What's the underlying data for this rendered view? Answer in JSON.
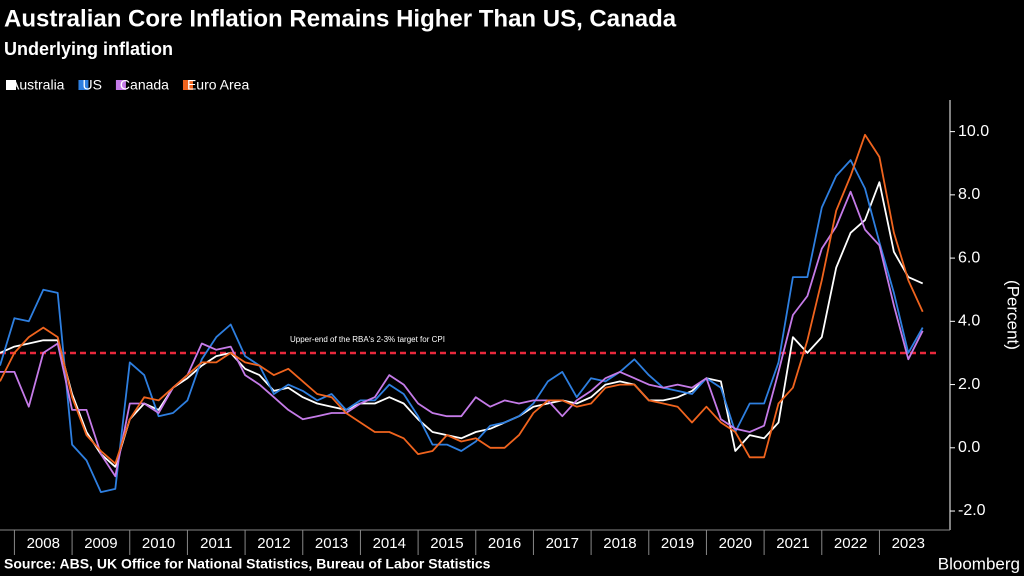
{
  "chart_data": {
    "type": "line",
    "title": "Australian Core Inflation Remains Higher Than US, Canada",
    "subtitle": "Underlying inflation",
    "y_label": "(Percent)",
    "source": "Source: ABS, UK Office for National Statistics, Bureau of Labor Statistics",
    "brand": "Bloomberg",
    "x": [
      2007.75,
      2008,
      2008.25,
      2008.5,
      2008.75,
      2009,
      2009.25,
      2009.5,
      2009.75,
      2010,
      2010.25,
      2010.5,
      2010.75,
      2011,
      2011.25,
      2011.5,
      2011.75,
      2012,
      2012.25,
      2012.5,
      2012.75,
      2013,
      2013.25,
      2013.5,
      2013.75,
      2014,
      2014.25,
      2014.5,
      2014.75,
      2015,
      2015.25,
      2015.5,
      2015.75,
      2016,
      2016.25,
      2016.5,
      2016.75,
      2017,
      2017.25,
      2017.5,
      2017.75,
      2018,
      2018.25,
      2018.5,
      2018.75,
      2019,
      2019.25,
      2019.5,
      2019.75,
      2020,
      2020.25,
      2020.5,
      2020.75,
      2021,
      2021.25,
      2021.5,
      2021.75,
      2022,
      2022.25,
      2022.5,
      2022.75,
      2023,
      2023.25,
      2023.5,
      2023.75
    ],
    "xlim": [
      2007.75,
      2024.05
    ],
    "xticks": [
      2008,
      2009,
      2010,
      2011,
      2012,
      2013,
      2014,
      2015,
      2016,
      2017,
      2018,
      2019,
      2020,
      2021,
      2022,
      2023
    ],
    "ylim": [
      -2.6,
      11
    ],
    "yticks": [
      {
        "value": -2,
        "label": "-2.0"
      },
      {
        "value": 0,
        "label": "0.0"
      },
      {
        "value": 2,
        "label": "2.0"
      },
      {
        "value": 4,
        "label": "4.0"
      },
      {
        "value": 6,
        "label": "6.0"
      },
      {
        "value": 8,
        "label": "8.0"
      },
      {
        "value": 10,
        "label": "10.0"
      }
    ],
    "reference_line": {
      "value": 3,
      "label": "Upper-end of the RBA's 2-3% target for CPI",
      "color": "#e8283c"
    },
    "series": [
      {
        "name": "Australia",
        "color": "#ffffff",
        "values": [
          3.0,
          3.2,
          3.3,
          3.4,
          3.4,
          1.7,
          0.5,
          -0.2,
          -0.6,
          0.9,
          1.4,
          1.2,
          1.9,
          2.2,
          2.6,
          2.9,
          3.0,
          2.5,
          2.3,
          1.8,
          1.9,
          1.6,
          1.4,
          1.3,
          1.2,
          1.4,
          1.4,
          1.6,
          1.4,
          0.9,
          0.5,
          0.4,
          0.3,
          0.5,
          0.6,
          0.8,
          1.0,
          1.3,
          1.4,
          1.5,
          1.4,
          1.6,
          2.0,
          2.1,
          2.0,
          1.5,
          1.5,
          1.6,
          1.8,
          2.2,
          2.1,
          -0.1,
          0.4,
          0.3,
          0.8,
          3.5,
          3.0,
          3.5,
          5.7,
          6.8,
          7.2,
          8.4,
          6.2,
          5.4,
          5.2
        ]
      },
      {
        "name": "US",
        "color": "#2e7fe0",
        "values": [
          2.6,
          4.1,
          4.0,
          5.0,
          4.9,
          0.1,
          -0.4,
          -1.4,
          -1.3,
          2.7,
          2.3,
          1.0,
          1.1,
          1.5,
          2.8,
          3.5,
          3.9,
          2.9,
          2.6,
          1.7,
          2.0,
          1.8,
          1.5,
          1.7,
          1.2,
          1.5,
          1.5,
          2.0,
          1.7,
          1.0,
          0.1,
          0.1,
          -0.1,
          0.2,
          0.7,
          0.8,
          1.0,
          1.4,
          2.1,
          2.4,
          1.6,
          2.2,
          2.1,
          2.4,
          2.8,
          2.3,
          1.9,
          1.8,
          1.7,
          2.2,
          1.9,
          0.5,
          1.4,
          1.4,
          2.7,
          5.4,
          5.4,
          7.6,
          8.6,
          9.1,
          8.2,
          6.5,
          4.9,
          3.0,
          3.8
        ]
      },
      {
        "name": "Canada",
        "color": "#c57be8",
        "values": [
          2.4,
          2.4,
          1.3,
          3.0,
          3.3,
          1.2,
          1.2,
          -0.2,
          -0.9,
          1.4,
          1.4,
          1.1,
          1.9,
          2.3,
          3.3,
          3.1,
          3.2,
          2.3,
          2.0,
          1.6,
          1.2,
          0.9,
          1.0,
          1.1,
          1.1,
          1.4,
          1.6,
          2.3,
          2.0,
          1.4,
          1.1,
          1.0,
          1.0,
          1.6,
          1.3,
          1.5,
          1.4,
          1.5,
          1.5,
          1.0,
          1.5,
          1.8,
          2.2,
          2.4,
          2.2,
          2.0,
          1.9,
          2.0,
          1.9,
          2.2,
          0.9,
          0.6,
          0.5,
          0.7,
          2.4,
          4.2,
          4.8,
          6.3,
          7.0,
          8.1,
          6.9,
          6.4,
          4.5,
          2.8,
          3.7
        ]
      },
      {
        "name": "Euro Area",
        "color": "#f0641e",
        "values": [
          2.1,
          3.0,
          3.5,
          3.8,
          3.5,
          1.6,
          0.4,
          -0.1,
          -0.5,
          0.9,
          1.6,
          1.5,
          1.9,
          2.3,
          2.7,
          2.7,
          3.0,
          2.7,
          2.6,
          2.3,
          2.5,
          2.1,
          1.7,
          1.6,
          1.1,
          0.8,
          0.5,
          0.5,
          0.3,
          -0.2,
          -0.1,
          0.4,
          0.2,
          0.3,
          0.0,
          0.0,
          0.4,
          1.1,
          1.5,
          1.5,
          1.3,
          1.4,
          1.9,
          2.0,
          2.0,
          1.5,
          1.4,
          1.3,
          0.8,
          1.3,
          0.8,
          0.5,
          -0.3,
          -0.3,
          1.4,
          1.9,
          3.4,
          5.3,
          7.5,
          8.6,
          9.9,
          9.2,
          6.8,
          5.3,
          4.3
        ]
      }
    ]
  }
}
